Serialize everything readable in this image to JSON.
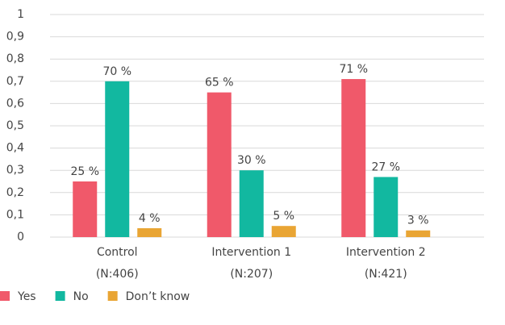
{
  "chart_data": {
    "type": "bar",
    "categories": [
      "Control",
      "Intervention 1",
      "Intervention 2"
    ],
    "category_notes": [
      "(N:406)",
      "(N:207)",
      "(N:421)"
    ],
    "series": [
      {
        "name": "Yes",
        "color": "#f0596a",
        "values": [
          0.25,
          0.65,
          0.71
        ],
        "value_labels": [
          "25 %",
          "65 %",
          "71 %"
        ]
      },
      {
        "name": "No",
        "color": "#12b8a0",
        "values": [
          0.7,
          0.3,
          0.27
        ],
        "value_labels": [
          "70 %",
          "30 %",
          "27 %"
        ]
      },
      {
        "name": "Don’t know",
        "color": "#e9a534",
        "values": [
          0.04,
          0.05,
          0.03
        ],
        "value_labels": [
          "4 %",
          "5 %",
          "3 %"
        ]
      }
    ],
    "ylim": [
      0,
      1
    ],
    "yticks": [
      0,
      {
        "value": 0.1,
        "label": "0,1"
      },
      {
        "value": 0.2,
        "label": "0,2"
      },
      {
        "value": 0.3,
        "label": "0,3"
      },
      {
        "value": 0.4,
        "label": "0,4"
      },
      {
        "value": 0.5,
        "label": "0,5"
      },
      {
        "value": 0.6,
        "label": "0,6"
      },
      {
        "value": 0.7,
        "label": "0,7"
      },
      {
        "value": 0.8,
        "label": "0,8"
      },
      {
        "value": 0.9,
        "label": "0,9"
      },
      1
    ],
    "grid": true,
    "legend": "bottom-left"
  }
}
